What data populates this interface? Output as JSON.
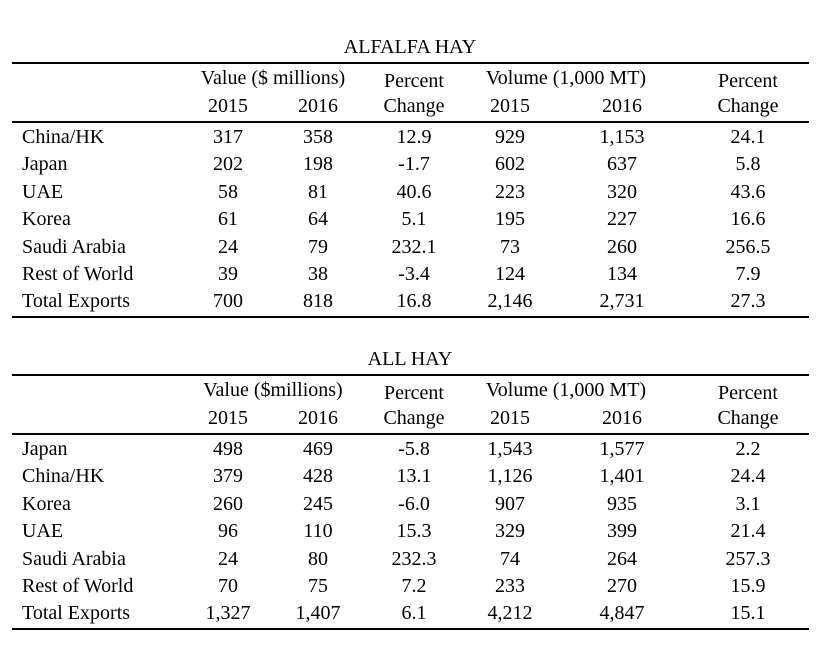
{
  "tables": [
    {
      "title": "ALFALFA HAY",
      "header_top": [
        "Value ($ millions)",
        "Percent",
        "Volume (1,000 MT)",
        "Percent"
      ],
      "header_bottom": [
        "2015",
        "2016",
        "Change",
        "2015",
        "2016",
        "Change"
      ],
      "rows": [
        [
          "China/HK",
          "317",
          "358",
          "12.9",
          "929",
          "1,153",
          "24.1"
        ],
        [
          "Japan",
          "202",
          "198",
          "-1.7",
          "602",
          "637",
          "5.8"
        ],
        [
          "UAE",
          "58",
          "81",
          "40.6",
          "223",
          "320",
          "43.6"
        ],
        [
          "Korea",
          "61",
          "64",
          "5.1",
          "195",
          "227",
          "16.6"
        ],
        [
          "Saudi Arabia",
          "24",
          "79",
          "232.1",
          "73",
          "260",
          "256.5"
        ],
        [
          "Rest of World",
          "39",
          "38",
          "-3.4",
          "124",
          "134",
          "7.9"
        ],
        [
          "Total Exports",
          "700",
          "818",
          "16.8",
          "2,146",
          "2,731",
          "27.3"
        ]
      ]
    },
    {
      "title": "ALL HAY",
      "header_top": [
        "Value ($millions)",
        "Percent",
        "Volume (1,000 MT)",
        "Percent"
      ],
      "header_bottom": [
        "2015",
        "2016",
        "Change",
        "2015",
        "2016",
        "Change"
      ],
      "rows": [
        [
          "Japan",
          "498",
          "469",
          "-5.8",
          "1,543",
          "1,577",
          "2.2"
        ],
        [
          "China/HK",
          "379",
          "428",
          "13.1",
          "1,126",
          "1,401",
          "24.4"
        ],
        [
          "Korea",
          "260",
          "245",
          "-6.0",
          "907",
          "935",
          "3.1"
        ],
        [
          "UAE",
          "96",
          "110",
          "15.3",
          "329",
          "399",
          "21.4"
        ],
        [
          "Saudi Arabia",
          "24",
          "80",
          "232.3",
          "74",
          "264",
          "257.3"
        ],
        [
          "Rest of World",
          "70",
          "75",
          "7.2",
          "233",
          "270",
          "15.9"
        ],
        [
          "Total Exports",
          "1,327",
          "1,407",
          "6.1",
          "4,212",
          "4,847",
          "15.1"
        ]
      ]
    }
  ]
}
